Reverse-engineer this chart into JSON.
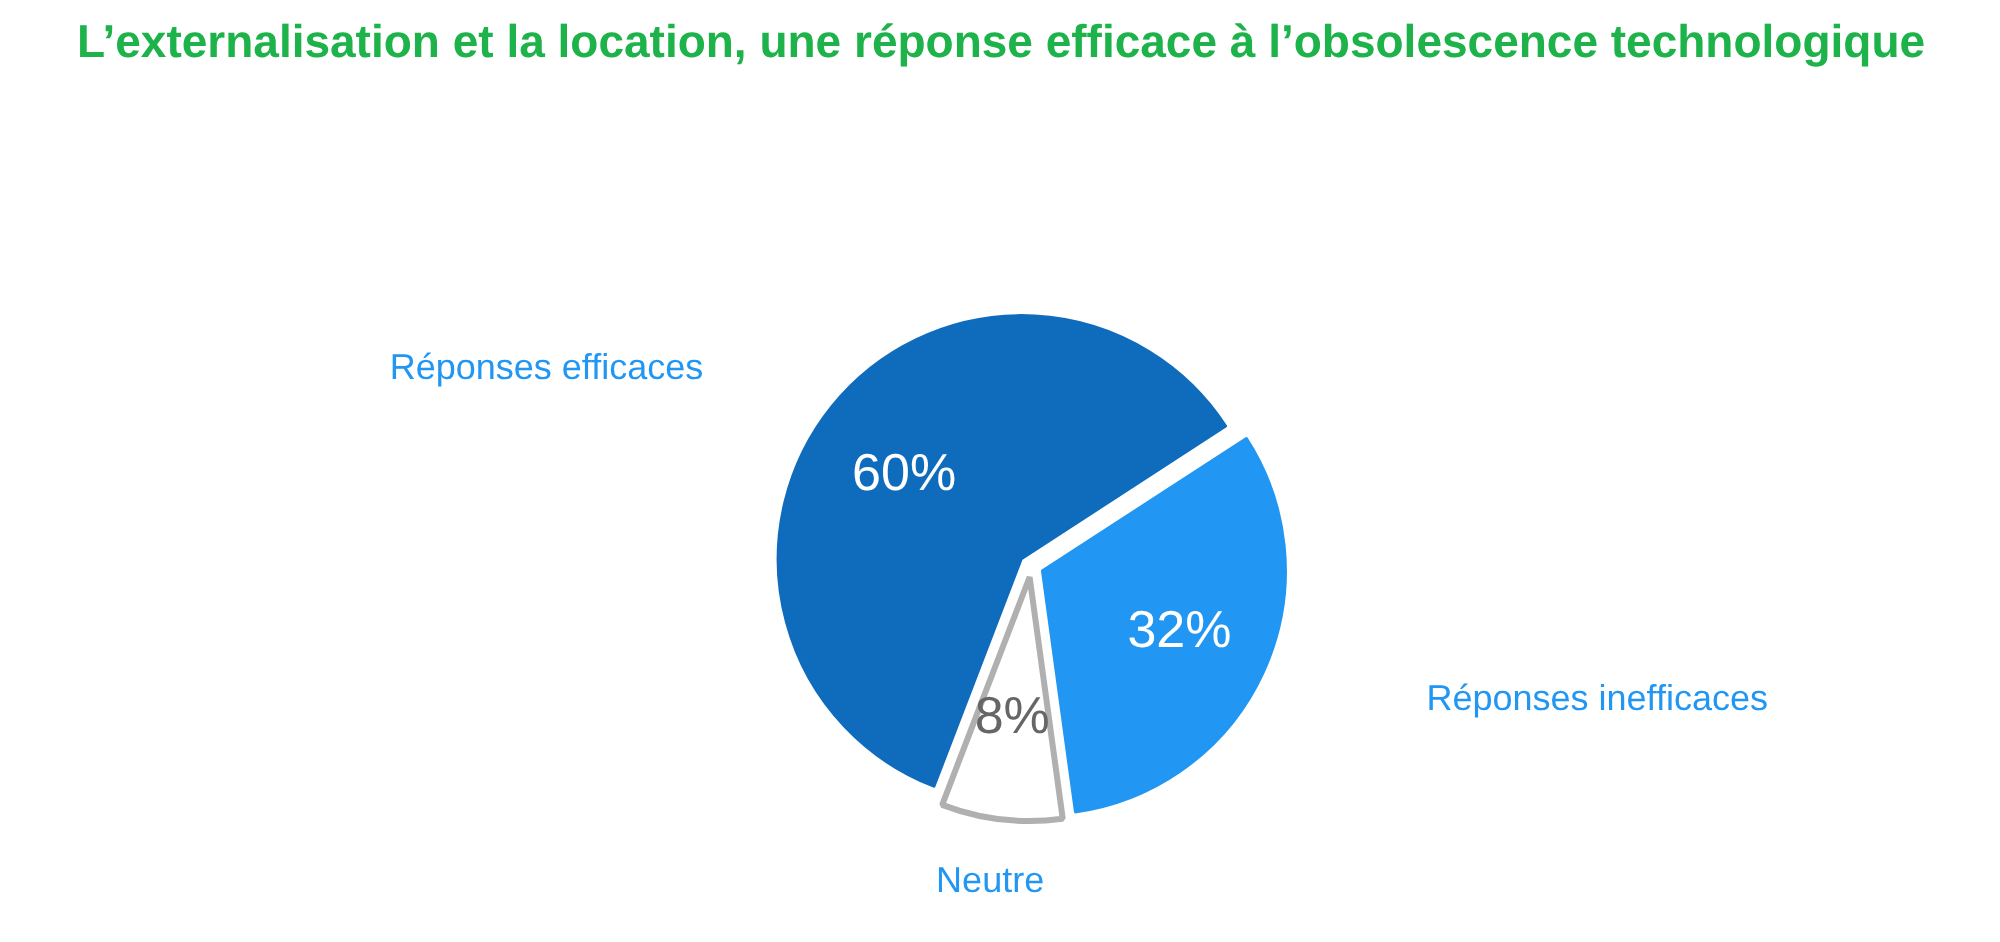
{
  "chart_data": {
    "type": "pie",
    "title": "L’externalisation et la location, une réponse efficace à l’obsolescence technologique",
    "categories": [
      "Réponses efficaces",
      "Réponses inefficaces",
      "Neutre"
    ],
    "values": [
      60,
      32,
      8
    ],
    "colors": [
      "#0f6cbd",
      "#2196f3",
      "#ffffff"
    ],
    "value_labels": [
      "60%",
      "32%",
      "8%"
    ]
  }
}
